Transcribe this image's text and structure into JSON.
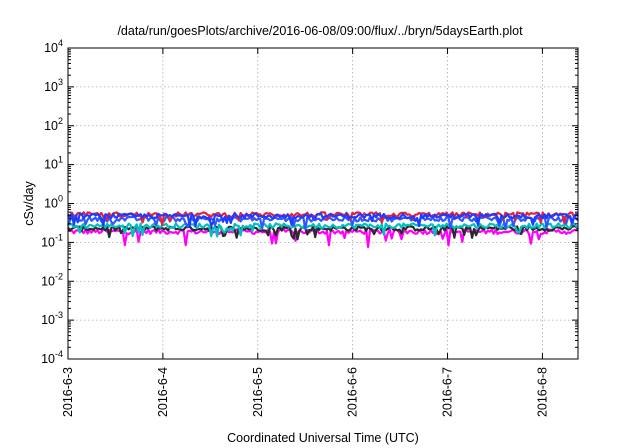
{
  "chart_data": {
    "type": "line",
    "title": "/data/run/goesPlots/archive/2016-06-08/09:00/flux/../bryn/5daysEarth.plot",
    "xlabel": "Coordinated Universal Time (UTC)",
    "ylabel": "cSv/day",
    "y_scale": "log",
    "ylim": [
      0.0001,
      10000
    ],
    "y_ticks": [
      {
        "base": "10",
        "exp": "4",
        "value": 10000
      },
      {
        "base": "10",
        "exp": "3",
        "value": 1000
      },
      {
        "base": "10",
        "exp": "2",
        "value": 100
      },
      {
        "base": "10",
        "exp": "1",
        "value": 10
      },
      {
        "base": "10",
        "exp": "0",
        "value": 1
      },
      {
        "base": "10",
        "exp": "-1",
        "value": 0.1
      },
      {
        "base": "10",
        "exp": "-2",
        "value": 0.01
      },
      {
        "base": "10",
        "exp": "-3",
        "value": 0.001
      },
      {
        "base": "10",
        "exp": "-4",
        "value": 0.0001
      }
    ],
    "xlim": [
      "2016-06-03T00:00",
      "2016-06-08T09:00"
    ],
    "x_ticks": [
      "2016-6-3",
      "2016-6-4",
      "2016-6-5",
      "2016-6-6",
      "2016-6-7",
      "2016-6-8"
    ],
    "grid": true,
    "series": [
      {
        "color": "#ff00ff",
        "base": 0.19,
        "dip": 0.07
      },
      {
        "color": "#2a2a2a",
        "base": 0.23,
        "dip": 0.12
      },
      {
        "color": "#00c0c0",
        "base": 0.27,
        "dip": 0.14
      },
      {
        "color": "#3355ff",
        "base": 0.4,
        "dip": 0.22
      },
      {
        "color": "#e8203a",
        "base": 0.52,
        "dip": 0.28
      },
      {
        "color": "#1c3cff",
        "base": 0.48,
        "dip": 0.26
      }
    ]
  }
}
